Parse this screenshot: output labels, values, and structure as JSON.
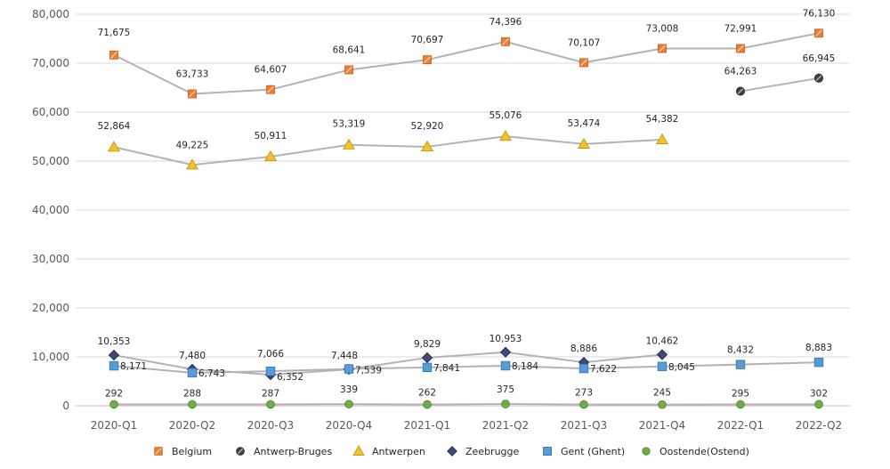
{
  "chart_data": {
    "type": "line",
    "title": "",
    "xlabel": "",
    "ylabel": "",
    "ylim": [
      0,
      80000
    ],
    "yticks": [
      0,
      10000,
      20000,
      30000,
      40000,
      50000,
      60000,
      70000,
      80000
    ],
    "ytick_labels": [
      "0",
      "10,000",
      "20,000",
      "30,000",
      "40,000",
      "50,000",
      "60,000",
      "70,000",
      "80,000"
    ],
    "grid": true,
    "legend_position": "bottom",
    "categories": [
      "2020-Q1",
      "2020-Q2",
      "2020-Q3",
      "2020-Q4",
      "2021-Q1",
      "2021-Q2",
      "2021-Q3",
      "2021-Q4",
      "2022-Q1",
      "2022-Q2"
    ],
    "series": [
      {
        "name": "Belgium",
        "marker": "square-orange",
        "color": "#ed7d31",
        "values": [
          71675,
          63733,
          64607,
          68641,
          70697,
          74396,
          70107,
          73008,
          72991,
          76130
        ],
        "labels": [
          "71,675",
          "63,733",
          "64,607",
          "68,641",
          "70,697",
          "74,396",
          "70,107",
          "73,008",
          "72,991",
          "76,130"
        ]
      },
      {
        "name": "Antwerp-Bruges",
        "marker": "circle-dark",
        "color": "#404040",
        "values": [
          null,
          null,
          null,
          null,
          null,
          null,
          null,
          null,
          64263,
          66945
        ],
        "labels": [
          null,
          null,
          null,
          null,
          null,
          null,
          null,
          null,
          "64,263",
          "66,945"
        ]
      },
      {
        "name": "Antwerpen",
        "marker": "triangle-yellow",
        "color": "#f2c12e",
        "values": [
          52864,
          49225,
          50911,
          53319,
          52920,
          55076,
          53474,
          54382,
          null,
          null
        ],
        "labels": [
          "52,864",
          "49,225",
          "50,911",
          "53,319",
          "52,920",
          "55,076",
          "53,474",
          "54,382",
          null,
          null
        ]
      },
      {
        "name": "Zeebrugge",
        "marker": "diamond-navy",
        "color": "#3b4a7a",
        "values": [
          10353,
          7480,
          6352,
          7448,
          9829,
          10953,
          8886,
          10462,
          null,
          null
        ],
        "labels": [
          "10,353",
          "7,480",
          "6,352",
          "7,448",
          "9,829",
          "10,953",
          "8,886",
          "10,462",
          null,
          null
        ]
      },
      {
        "name": "Gent (Ghent)",
        "marker": "square-blue",
        "color": "#5b9bd5",
        "values": [
          8171,
          6743,
          7066,
          7539,
          7841,
          8184,
          7622,
          8045,
          8432,
          8883
        ],
        "labels": [
          "8,171",
          "6,743",
          "7,066",
          "7,539",
          "7,841",
          "8,184",
          "7,622",
          "8,045",
          "8,432",
          "8,883"
        ]
      },
      {
        "name": "Oostende(Ostend)",
        "marker": "circle-green",
        "color": "#70ad47",
        "values": [
          292,
          288,
          287,
          339,
          262,
          375,
          273,
          245,
          295,
          302
        ],
        "labels": [
          "292",
          "288",
          "287",
          "339",
          "262",
          "375",
          "273",
          "245",
          "295",
          "302"
        ]
      }
    ]
  }
}
